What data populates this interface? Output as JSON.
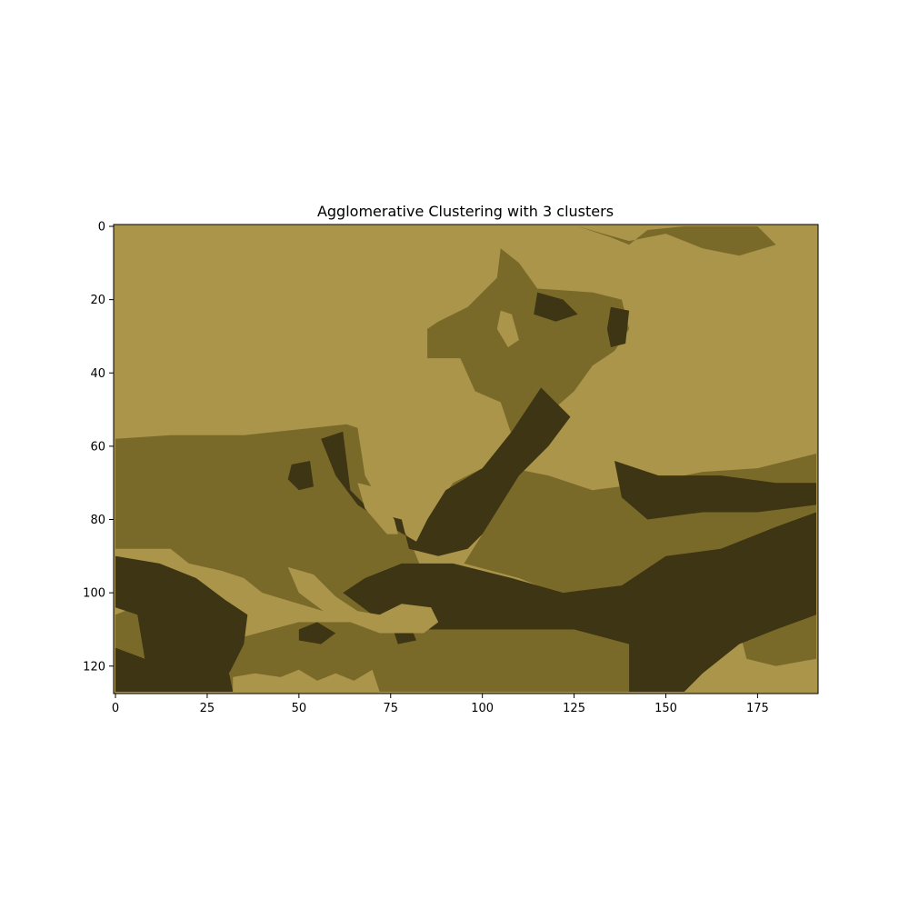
{
  "chart_data": {
    "type": "heatmap",
    "title": "Agglomerative Clustering with 3 clusters",
    "xlabel": "",
    "ylabel": "",
    "xlim": [
      -0.5,
      191.5
    ],
    "ylim": [
      127.5,
      -0.5
    ],
    "x_ticks": [
      0,
      25,
      50,
      75,
      100,
      125,
      150,
      175
    ],
    "y_ticks": [
      0,
      20,
      40,
      60,
      80,
      100,
      120
    ],
    "grid": false,
    "legend": "none",
    "image_size": {
      "columns": 192,
      "rows": 128
    },
    "cluster_colors": [
      "#ab954b",
      "#7a6a2a",
      "#3d3513"
    ],
    "regions": [
      {
        "cluster": 1,
        "polygon": [
          [
            0,
            58
          ],
          [
            15,
            57
          ],
          [
            35,
            57
          ],
          [
            63,
            54
          ],
          [
            66,
            55
          ],
          [
            68,
            68
          ],
          [
            72,
            75
          ],
          [
            80,
            85
          ],
          [
            84,
            95
          ],
          [
            80,
            106
          ],
          [
            60,
            106
          ],
          [
            50,
            103
          ],
          [
            40,
            100
          ],
          [
            35,
            96
          ],
          [
            29,
            94
          ],
          [
            20,
            92
          ],
          [
            15,
            88
          ],
          [
            0,
            88
          ]
        ]
      },
      {
        "cluster": 1,
        "polygon": [
          [
            85,
            80
          ],
          [
            96,
            72
          ],
          [
            108,
            62
          ],
          [
            117,
            52
          ],
          [
            125,
            45
          ],
          [
            130,
            38
          ],
          [
            136,
            34
          ],
          [
            140,
            28
          ],
          [
            138,
            20
          ],
          [
            130,
            18
          ],
          [
            115,
            17
          ],
          [
            110,
            10
          ],
          [
            105,
            6
          ],
          [
            104,
            14
          ],
          [
            96,
            22
          ],
          [
            88,
            26
          ],
          [
            85,
            28
          ],
          [
            85,
            36
          ],
          [
            94,
            36
          ],
          [
            98,
            45
          ],
          [
            105,
            48
          ],
          [
            108,
            57
          ],
          [
            100,
            66
          ],
          [
            92,
            70
          ]
        ]
      },
      {
        "cluster": 1,
        "polygon": [
          [
            126,
            0
          ],
          [
            135,
            3
          ],
          [
            140,
            5
          ],
          [
            145,
            1
          ],
          [
            155,
            0
          ],
          [
            175,
            0
          ],
          [
            180,
            5
          ],
          [
            170,
            8
          ],
          [
            160,
            6
          ],
          [
            150,
            2
          ],
          [
            140,
            4
          ],
          [
            133,
            2
          ]
        ]
      },
      {
        "cluster": 1,
        "polygon": [
          [
            108,
            66
          ],
          [
            118,
            68
          ],
          [
            130,
            72
          ],
          [
            145,
            70
          ],
          [
            160,
            67
          ],
          [
            175,
            66
          ],
          [
            191,
            62
          ],
          [
            191,
            80
          ],
          [
            180,
            85
          ],
          [
            160,
            90
          ],
          [
            145,
            96
          ],
          [
            135,
            100
          ],
          [
            120,
            100
          ],
          [
            110,
            96
          ],
          [
            95,
            92
          ],
          [
            100,
            84
          ]
        ]
      },
      {
        "cluster": 1,
        "polygon": [
          [
            35,
            112
          ],
          [
            50,
            108
          ],
          [
            70,
            108
          ],
          [
            90,
            110
          ],
          [
            110,
            108
          ],
          [
            130,
            110
          ],
          [
            145,
            110
          ],
          [
            150,
            115
          ],
          [
            148,
            127
          ],
          [
            30,
            127
          ],
          [
            32,
            118
          ]
        ]
      },
      {
        "cluster": 1,
        "polygon": [
          [
            0,
            106
          ],
          [
            10,
            102
          ],
          [
            15,
            108
          ],
          [
            10,
            118
          ],
          [
            0,
            118
          ]
        ]
      },
      {
        "cluster": 1,
        "polygon": [
          [
            170,
            110
          ],
          [
            182,
            108
          ],
          [
            191,
            106
          ],
          [
            191,
            118
          ],
          [
            180,
            120
          ],
          [
            172,
            118
          ]
        ]
      },
      {
        "cluster": 2,
        "polygon": [
          [
            0,
            90
          ],
          [
            12,
            92
          ],
          [
            22,
            96
          ],
          [
            30,
            102
          ],
          [
            36,
            106
          ],
          [
            35,
            114
          ],
          [
            31,
            122
          ],
          [
            32,
            127
          ],
          [
            0,
            127
          ],
          [
            0,
            115
          ],
          [
            8,
            118
          ],
          [
            6,
            106
          ],
          [
            0,
            104
          ]
        ]
      },
      {
        "cluster": 2,
        "polygon": [
          [
            56,
            58
          ],
          [
            62,
            56
          ],
          [
            64,
            72
          ],
          [
            70,
            78
          ],
          [
            78,
            80
          ],
          [
            80,
            88
          ],
          [
            88,
            90
          ],
          [
            96,
            88
          ],
          [
            100,
            84
          ],
          [
            105,
            76
          ],
          [
            110,
            68
          ],
          [
            118,
            60
          ],
          [
            124,
            52
          ],
          [
            116,
            44
          ],
          [
            108,
            56
          ],
          [
            100,
            66
          ],
          [
            90,
            72
          ],
          [
            85,
            80
          ],
          [
            82,
            86
          ],
          [
            75,
            82
          ],
          [
            66,
            76
          ],
          [
            60,
            68
          ]
        ]
      },
      {
        "cluster": 2,
        "polygon": [
          [
            78,
            92
          ],
          [
            92,
            92
          ],
          [
            108,
            96
          ],
          [
            122,
            100
          ],
          [
            138,
            98
          ],
          [
            150,
            90
          ],
          [
            165,
            88
          ],
          [
            180,
            82
          ],
          [
            191,
            78
          ],
          [
            191,
            106
          ],
          [
            180,
            110
          ],
          [
            170,
            114
          ],
          [
            160,
            122
          ],
          [
            155,
            127
          ],
          [
            140,
            127
          ],
          [
            140,
            114
          ],
          [
            125,
            110
          ],
          [
            105,
            110
          ],
          [
            85,
            110
          ],
          [
            70,
            106
          ],
          [
            62,
            100
          ],
          [
            68,
            96
          ]
        ]
      },
      {
        "cluster": 2,
        "polygon": [
          [
            136,
            64
          ],
          [
            148,
            68
          ],
          [
            165,
            68
          ],
          [
            180,
            70
          ],
          [
            191,
            70
          ],
          [
            191,
            76
          ],
          [
            175,
            78
          ],
          [
            160,
            78
          ],
          [
            145,
            80
          ],
          [
            138,
            74
          ]
        ]
      },
      {
        "cluster": 2,
        "polygon": [
          [
            115,
            18
          ],
          [
            122,
            20
          ],
          [
            126,
            24
          ],
          [
            120,
            26
          ],
          [
            114,
            24
          ]
        ]
      },
      {
        "cluster": 2,
        "polygon": [
          [
            135,
            22
          ],
          [
            140,
            23
          ],
          [
            139,
            32
          ],
          [
            135,
            33
          ],
          [
            134,
            28
          ]
        ]
      },
      {
        "cluster": 2,
        "polygon": [
          [
            48,
            65
          ],
          [
            53,
            64
          ],
          [
            54,
            71
          ],
          [
            50,
            72
          ],
          [
            47,
            69
          ]
        ]
      },
      {
        "cluster": 2,
        "polygon": [
          [
            50,
            110
          ],
          [
            55,
            108
          ],
          [
            60,
            111
          ],
          [
            56,
            114
          ],
          [
            50,
            113
          ]
        ]
      },
      {
        "cluster": 2,
        "polygon": [
          [
            75,
            108
          ],
          [
            80,
            108
          ],
          [
            82,
            113
          ],
          [
            77,
            114
          ]
        ]
      },
      {
        "cluster": 0,
        "polygon": [
          [
            105,
            23
          ],
          [
            108,
            24
          ],
          [
            110,
            31
          ],
          [
            107,
            33
          ],
          [
            104,
            28
          ]
        ]
      },
      {
        "cluster": 0,
        "polygon": [
          [
            66,
            70
          ],
          [
            70,
            71
          ],
          [
            76,
            80
          ],
          [
            77,
            84
          ],
          [
            74,
            84
          ],
          [
            68,
            77
          ]
        ]
      },
      {
        "cluster": 0,
        "polygon": [
          [
            47,
            93
          ],
          [
            54,
            95
          ],
          [
            60,
            101
          ],
          [
            66,
            105
          ],
          [
            72,
            106
          ],
          [
            78,
            103
          ],
          [
            86,
            104
          ],
          [
            88,
            108
          ],
          [
            84,
            111
          ],
          [
            72,
            111
          ],
          [
            64,
            108
          ],
          [
            58,
            106
          ],
          [
            50,
            100
          ]
        ]
      },
      {
        "cluster": 0,
        "polygon": [
          [
            32,
            123
          ],
          [
            38,
            122
          ],
          [
            45,
            123
          ],
          [
            50,
            121
          ],
          [
            55,
            124
          ],
          [
            60,
            122
          ],
          [
            65,
            124
          ],
          [
            70,
            121
          ],
          [
            72,
            127
          ],
          [
            32,
            127
          ]
        ]
      }
    ]
  }
}
